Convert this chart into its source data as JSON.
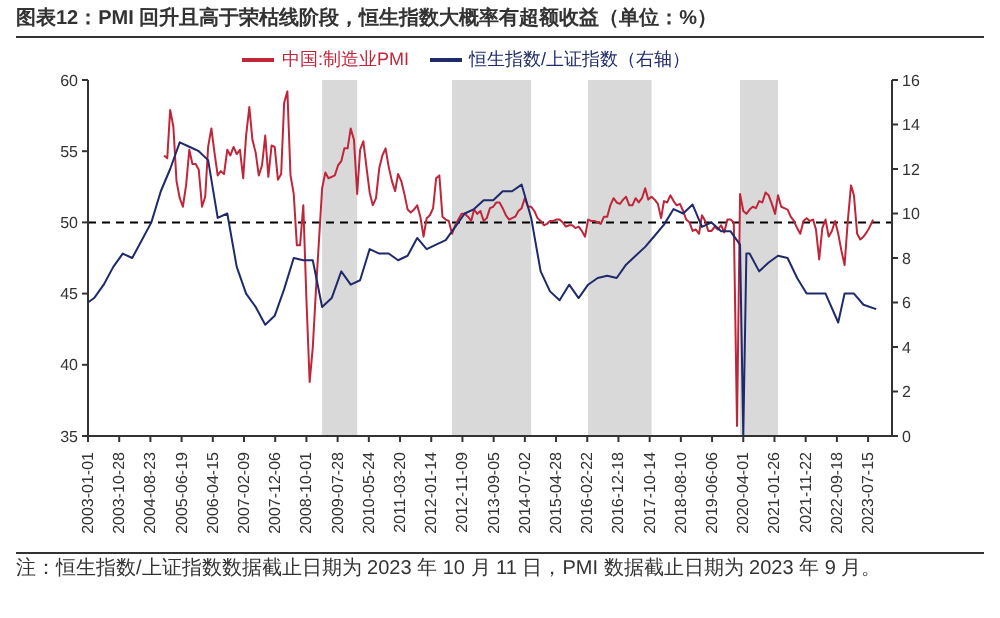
{
  "chart_data": {
    "type": "line",
    "title": "图表12：PMI 回升且高于荣枯线阶段，恒生指数大概率有超额收益（单位：%）",
    "annotations": [
      "注：恒生指数/上证指数数据截止日期为 2023 年 10 月 11 日，PMI 数据截止日期为 2023 年 9 月。"
    ],
    "xlim": [
      "2003-01-01",
      "2024-03-01"
    ],
    "xticks": [
      "2003-01-01",
      "2003-10-28",
      "2004-08-23",
      "2005-06-19",
      "2006-04-15",
      "2007-02-09",
      "2007-12-06",
      "2008-10-01",
      "2009-07-28",
      "2010-05-24",
      "2011-03-20",
      "2012-01-14",
      "2012-11-09",
      "2013-09-05",
      "2014-07-02",
      "2015-04-28",
      "2016-02-22",
      "2016-12-18",
      "2017-10-14",
      "2018-08-10",
      "2019-06-06",
      "2020-04-01",
      "2021-01-26",
      "2021-11-22",
      "2022-09-18",
      "2023-07-15"
    ],
    "ylim": [
      35,
      60
    ],
    "yticks": [
      35,
      40,
      45,
      50,
      55,
      60
    ],
    "y2lim": [
      0,
      16
    ],
    "y2ticks": [
      0,
      2,
      4,
      6,
      8,
      10,
      12,
      14,
      16
    ],
    "legend": "top",
    "marker": "none",
    "grid": false,
    "ref_lines": [
      {
        "axis": "y",
        "value": 50,
        "line_style": "dashed",
        "color": "#000000"
      }
    ],
    "bands": [
      {
        "axis": "x",
        "from": "2009-03",
        "to": "2010-02",
        "color": "#d9d9d9"
      },
      {
        "axis": "x",
        "from": "2012-08",
        "to": "2014-09",
        "color": "#d9d9d9"
      },
      {
        "axis": "x",
        "from": "2016-03",
        "to": "2017-11",
        "color": "#d9d9d9"
      },
      {
        "axis": "x",
        "from": "2020-03",
        "to": "2021-03",
        "color": "#d9d9d9"
      }
    ],
    "series": [
      {
        "name": "中国:制造业PMI",
        "color": "#c0263a",
        "x": [
          "2005-01",
          "2005-02",
          "2005-03",
          "2005-04",
          "2005-05",
          "2005-06",
          "2005-07",
          "2005-08",
          "2005-09",
          "2005-10",
          "2005-11",
          "2005-12",
          "2006-01",
          "2006-02",
          "2006-03",
          "2006-04",
          "2006-05",
          "2006-06",
          "2006-07",
          "2006-08",
          "2006-09",
          "2006-10",
          "2006-11",
          "2006-12",
          "2007-01",
          "2007-02",
          "2007-03",
          "2007-04",
          "2007-05",
          "2007-06",
          "2007-07",
          "2007-08",
          "2007-09",
          "2007-10",
          "2007-11",
          "2007-12",
          "2008-01",
          "2008-02",
          "2008-03",
          "2008-04",
          "2008-05",
          "2008-06",
          "2008-07",
          "2008-08",
          "2008-09",
          "2008-10",
          "2008-11",
          "2008-12",
          "2009-01",
          "2009-02",
          "2009-03",
          "2009-04",
          "2009-05",
          "2009-06",
          "2009-07",
          "2009-08",
          "2009-09",
          "2009-10",
          "2009-11",
          "2009-12",
          "2010-01",
          "2010-02",
          "2010-03",
          "2010-04",
          "2010-05",
          "2010-06",
          "2010-07",
          "2010-08",
          "2010-09",
          "2010-10",
          "2010-11",
          "2010-12",
          "2011-01",
          "2011-02",
          "2011-03",
          "2011-04",
          "2011-05",
          "2011-06",
          "2011-07",
          "2011-08",
          "2011-09",
          "2011-10",
          "2011-11",
          "2011-12",
          "2012-01",
          "2012-02",
          "2012-03",
          "2012-04",
          "2012-05",
          "2012-06",
          "2012-07",
          "2012-08",
          "2012-09",
          "2012-10",
          "2012-11",
          "2012-12",
          "2013-01",
          "2013-02",
          "2013-03",
          "2013-04",
          "2013-05",
          "2013-06",
          "2013-07",
          "2013-08",
          "2013-09",
          "2013-10",
          "2013-11",
          "2013-12",
          "2014-01",
          "2014-02",
          "2014-03",
          "2014-04",
          "2014-05",
          "2014-06",
          "2014-07",
          "2014-08",
          "2014-09",
          "2014-10",
          "2014-11",
          "2014-12",
          "2015-01",
          "2015-02",
          "2015-03",
          "2015-04",
          "2015-05",
          "2015-06",
          "2015-07",
          "2015-08",
          "2015-09",
          "2015-10",
          "2015-11",
          "2015-12",
          "2016-01",
          "2016-02",
          "2016-03",
          "2016-04",
          "2016-05",
          "2016-06",
          "2016-07",
          "2016-08",
          "2016-09",
          "2016-10",
          "2016-11",
          "2016-12",
          "2017-01",
          "2017-02",
          "2017-03",
          "2017-04",
          "2017-05",
          "2017-06",
          "2017-07",
          "2017-08",
          "2017-09",
          "2017-10",
          "2017-11",
          "2017-12",
          "2018-01",
          "2018-02",
          "2018-03",
          "2018-04",
          "2018-05",
          "2018-06",
          "2018-07",
          "2018-08",
          "2018-09",
          "2018-10",
          "2018-11",
          "2018-12",
          "2019-01",
          "2019-02",
          "2019-03",
          "2019-04",
          "2019-05",
          "2019-06",
          "2019-07",
          "2019-08",
          "2019-09",
          "2019-10",
          "2019-11",
          "2019-12",
          "2020-01",
          "2020-02",
          "2020-03",
          "2020-04",
          "2020-05",
          "2020-06",
          "2020-07",
          "2020-08",
          "2020-09",
          "2020-10",
          "2020-11",
          "2020-12",
          "2021-01",
          "2021-02",
          "2021-03",
          "2021-04",
          "2021-05",
          "2021-06",
          "2021-07",
          "2021-08",
          "2021-09",
          "2021-10",
          "2021-11",
          "2021-12",
          "2022-01",
          "2022-02",
          "2022-03",
          "2022-04",
          "2022-05",
          "2022-06",
          "2022-07",
          "2022-08",
          "2022-09",
          "2022-10",
          "2022-11",
          "2022-12",
          "2023-01",
          "2023-02",
          "2023-03",
          "2023-04",
          "2023-05",
          "2023-06",
          "2023-07",
          "2023-08",
          "2023-09"
        ],
        "values": [
          54.7,
          54.5,
          57.9,
          56.7,
          52.9,
          51.7,
          51.1,
          52.6,
          55.1,
          54.1,
          54.1,
          53.7,
          51.1,
          51.8,
          55.3,
          56.6,
          54.9,
          53.3,
          53.6,
          53.4,
          55.1,
          54.7,
          55.3,
          54.8,
          55.1,
          53.1,
          56.1,
          58.1,
          55.8,
          54.9,
          53.3,
          54.0,
          56.1,
          53.2,
          55.4,
          55.3,
          53.0,
          53.4,
          58.4,
          59.2,
          53.3,
          52.0,
          48.4,
          48.4,
          51.2,
          44.6,
          38.8,
          41.2,
          45.3,
          49.0,
          52.4,
          53.5,
          53.1,
          53.2,
          53.3,
          54.0,
          54.3,
          55.2,
          55.2,
          56.6,
          55.8,
          52.0,
          55.1,
          55.7,
          53.9,
          52.1,
          51.2,
          51.7,
          53.8,
          54.7,
          55.2,
          53.9,
          52.9,
          52.2,
          53.4,
          52.9,
          52.0,
          50.9,
          50.7,
          50.9,
          51.2,
          50.4,
          49.0,
          50.3,
          50.5,
          51.0,
          53.1,
          53.3,
          50.4,
          50.2,
          50.1,
          49.2,
          49.8,
          50.2,
          50.6,
          50.6,
          50.4,
          50.1,
          50.9,
          50.6,
          50.8,
          50.1,
          50.3,
          51.0,
          51.1,
          51.4,
          51.4,
          51.0,
          50.5,
          50.2,
          50.3,
          50.4,
          50.8,
          51.0,
          51.7,
          51.1,
          51.1,
          50.8,
          50.3,
          50.1,
          49.8,
          49.9,
          50.1,
          50.1,
          50.2,
          50.2,
          50.0,
          49.7,
          49.8,
          49.8,
          49.6,
          49.7,
          49.4,
          49.0,
          50.2,
          50.1,
          50.1,
          50.0,
          49.9,
          50.4,
          50.4,
          51.2,
          51.7,
          51.4,
          51.3,
          51.6,
          51.8,
          51.2,
          51.2,
          51.7,
          51.4,
          51.7,
          52.4,
          51.6,
          51.8,
          51.6,
          51.3,
          50.3,
          51.5,
          51.4,
          51.9,
          51.5,
          51.2,
          51.3,
          50.8,
          50.2,
          50.0,
          49.4,
          49.5,
          49.2,
          50.5,
          50.1,
          49.4,
          49.4,
          49.7,
          49.5,
          49.8,
          49.3,
          50.2,
          50.2,
          50.0,
          35.7,
          52.0,
          50.8,
          50.6,
          50.9,
          51.1,
          51.0,
          51.5,
          51.4,
          52.1,
          51.9,
          51.3,
          50.6,
          51.9,
          51.1,
          51.0,
          50.9,
          50.4,
          50.1,
          49.6,
          49.2,
          50.1,
          50.3,
          50.1,
          50.2,
          49.5,
          47.4,
          49.6,
          50.2,
          49.0,
          49.4,
          50.1,
          49.2,
          48.0,
          47.0,
          50.1,
          52.6,
          51.9,
          49.2,
          48.8,
          49.0,
          49.3,
          49.7,
          50.2
        ]
      },
      {
        "name": "恒生指数/上证指数（右轴）",
        "color": "#1f2a6b",
        "axis": "y2",
        "x": [
          "2003-01",
          "2003-03",
          "2003-06",
          "2003-09",
          "2003-12",
          "2004-03",
          "2004-06",
          "2004-09",
          "2004-12",
          "2005-03",
          "2005-06",
          "2005-09",
          "2005-12",
          "2006-03",
          "2006-06",
          "2006-09",
          "2006-12",
          "2007-03",
          "2007-06",
          "2007-09",
          "2007-12",
          "2008-03",
          "2008-06",
          "2008-09",
          "2008-12",
          "2009-03",
          "2009-06",
          "2009-09",
          "2009-12",
          "2010-03",
          "2010-06",
          "2010-09",
          "2010-12",
          "2011-03",
          "2011-06",
          "2011-09",
          "2011-12",
          "2012-03",
          "2012-06",
          "2012-09",
          "2012-12",
          "2013-03",
          "2013-06",
          "2013-09",
          "2013-12",
          "2014-03",
          "2014-06",
          "2014-09",
          "2014-12",
          "2015-03",
          "2015-06",
          "2015-09",
          "2015-12",
          "2016-03",
          "2016-06",
          "2016-09",
          "2016-12",
          "2017-03",
          "2017-06",
          "2017-09",
          "2017-12",
          "2018-03",
          "2018-06",
          "2018-09",
          "2018-12",
          "2019-03",
          "2019-06",
          "2019-09",
          "2019-12",
          "2020-03",
          "2020-04",
          "2020-05",
          "2020-06",
          "2020-09",
          "2020-12",
          "2021-03",
          "2021-06",
          "2021-09",
          "2021-12",
          "2022-03",
          "2022-06",
          "2022-10",
          "2022-12",
          "2023-03",
          "2023-06",
          "2023-10"
        ],
        "values": [
          6.0,
          6.2,
          6.8,
          7.6,
          8.2,
          8.0,
          8.8,
          9.6,
          11.0,
          12.0,
          13.2,
          13.0,
          12.8,
          12.4,
          9.8,
          10.0,
          7.6,
          6.4,
          5.8,
          5.0,
          5.4,
          6.6,
          8.0,
          7.9,
          7.9,
          5.8,
          6.2,
          7.4,
          6.8,
          7.0,
          8.4,
          8.2,
          8.2,
          7.9,
          8.1,
          8.9,
          8.4,
          8.6,
          8.8,
          9.4,
          10.0,
          10.2,
          10.6,
          10.6,
          11.0,
          11.0,
          11.3,
          9.8,
          7.4,
          6.5,
          6.1,
          6.8,
          6.2,
          6.8,
          7.1,
          7.2,
          7.1,
          7.7,
          8.1,
          8.5,
          9.0,
          9.5,
          10.2,
          10.0,
          10.4,
          9.4,
          9.6,
          9.2,
          9.2,
          8.6,
          0.0,
          8.2,
          8.2,
          7.4,
          7.8,
          8.1,
          8.0,
          7.1,
          6.4,
          6.4,
          6.4,
          5.1,
          6.4,
          6.4,
          5.9,
          5.7
        ]
      }
    ]
  }
}
